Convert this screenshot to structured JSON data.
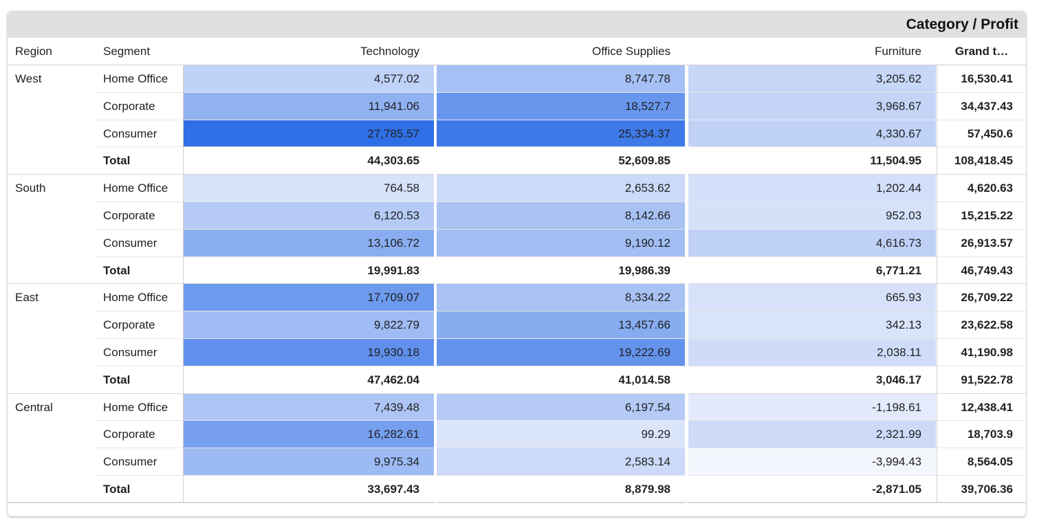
{
  "chart_data": {
    "type": "table",
    "title": "Category / Profit",
    "row_headers": [
      "Region",
      "Segment"
    ],
    "columns": [
      "Technology",
      "Office Supplies",
      "Furniture",
      "Grand t…"
    ],
    "regions": [
      {
        "name": "West",
        "rows": [
          {
            "segment": "Home Office",
            "values": [
              "4,577.02",
              "8,747.78",
              "3,205.62",
              "16,530.41"
            ],
            "numbers": [
              4577.02,
              8747.78,
              3205.62
            ]
          },
          {
            "segment": "Corporate",
            "values": [
              "11,941.06",
              "18,527.7",
              "3,968.67",
              "34,437.43"
            ],
            "numbers": [
              11941.06,
              18527.7,
              3968.67
            ]
          },
          {
            "segment": "Consumer",
            "values": [
              "27,785.57",
              "25,334.37",
              "4,330.67",
              "57,450.6"
            ],
            "numbers": [
              27785.57,
              25334.37,
              4330.67
            ]
          }
        ],
        "total": {
          "label": "Total",
          "values": [
            "44,303.65",
            "52,609.85",
            "11,504.95",
            "108,418.45"
          ]
        }
      },
      {
        "name": "South",
        "rows": [
          {
            "segment": "Home Office",
            "values": [
              "764.58",
              "2,653.62",
              "1,202.44",
              "4,620.63"
            ],
            "numbers": [
              764.58,
              2653.62,
              1202.44
            ]
          },
          {
            "segment": "Corporate",
            "values": [
              "6,120.53",
              "8,142.66",
              "952.03",
              "15,215.22"
            ],
            "numbers": [
              6120.53,
              8142.66,
              952.03
            ]
          },
          {
            "segment": "Consumer",
            "values": [
              "13,106.72",
              "9,190.12",
              "4,616.73",
              "26,913.57"
            ],
            "numbers": [
              13106.72,
              9190.12,
              4616.73
            ]
          }
        ],
        "total": {
          "label": "Total",
          "values": [
            "19,991.83",
            "19,986.39",
            "6,771.21",
            "46,749.43"
          ]
        }
      },
      {
        "name": "East",
        "rows": [
          {
            "segment": "Home Office",
            "values": [
              "17,709.07",
              "8,334.22",
              "665.93",
              "26,709.22"
            ],
            "numbers": [
              17709.07,
              8334.22,
              665.93
            ]
          },
          {
            "segment": "Corporate",
            "values": [
              "9,822.79",
              "13,457.66",
              "342.13",
              "23,622.58"
            ],
            "numbers": [
              9822.79,
              13457.66,
              342.13
            ]
          },
          {
            "segment": "Consumer",
            "values": [
              "19,930.18",
              "19,222.69",
              "2,038.11",
              "41,190.98"
            ],
            "numbers": [
              19930.18,
              19222.69,
              2038.11
            ]
          }
        ],
        "total": {
          "label": "Total",
          "values": [
            "47,462.04",
            "41,014.58",
            "3,046.17",
            "91,522.78"
          ]
        }
      },
      {
        "name": "Central",
        "rows": [
          {
            "segment": "Home Office",
            "values": [
              "7,439.48",
              "6,197.54",
              "-1,198.61",
              "12,438.41"
            ],
            "numbers": [
              7439.48,
              6197.54,
              -1198.61
            ]
          },
          {
            "segment": "Corporate",
            "values": [
              "16,282.61",
              "99.29",
              "2,321.99",
              "18,703.9"
            ],
            "numbers": [
              16282.61,
              99.29,
              2321.99
            ]
          },
          {
            "segment": "Consumer",
            "values": [
              "9,975.34",
              "2,583.14",
              "-3,994.43",
              "8,564.05"
            ],
            "numbers": [
              9975.34,
              2583.14,
              -3994.43
            ]
          }
        ],
        "total": {
          "label": "Total",
          "values": [
            "33,697.43",
            "8,879.98",
            "-2,871.05",
            "39,706.36"
          ]
        }
      }
    ],
    "heatmap": {
      "min_value": -3994.43,
      "max_value": 27785.57,
      "low_color": "#f4f6fd",
      "high_color": "#2f6fe6"
    }
  }
}
